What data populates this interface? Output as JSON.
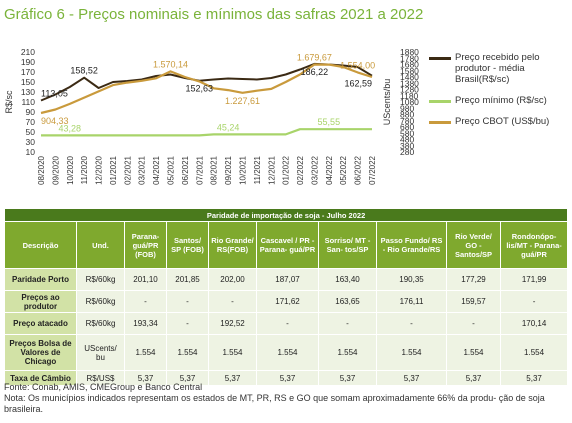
{
  "title": "Gráfico 6 - Preços nominais e mínimos das safras 2021 a 2022",
  "chart_data": {
    "type": "line",
    "categories": [
      "08/2020",
      "09/2020",
      "10/2020",
      "11/2020",
      "12/2020",
      "01/2021",
      "02/2021",
      "03/2021",
      "04/2021",
      "05/2021",
      "06/2021",
      "07/2021",
      "08/2021",
      "09/2021",
      "10/2021",
      "11/2021",
      "12/2021",
      "01/2022",
      "02/2022",
      "03/2022",
      "04/2022",
      "05/2022",
      "06/2022",
      "07/2022"
    ],
    "ylabel_left": "R$/sc",
    "ylabel_right": "UScents/bu",
    "y_left_ticks": [
      "210",
      "190",
      "170",
      "150",
      "130",
      "110",
      "90",
      "70",
      "50",
      "30",
      "10"
    ],
    "y_right_ticks": [
      "1880",
      "1780",
      "1680",
      "1580",
      "1480",
      "1380",
      "1280",
      "1180",
      "1080",
      "980",
      "880",
      "780",
      "680",
      "580",
      "480",
      "380",
      "280"
    ],
    "ylim_left": [
      10,
      210
    ],
    "ylim_right": [
      280,
      1880
    ],
    "series": [
      {
        "name": "Preço recebido pelo produtor - média Brasil(R$/sc)",
        "axis": "left",
        "color": "#3b2a14",
        "values": [
          113.05,
          125,
          140,
          158.52,
          138,
          150,
          152,
          155,
          162,
          165,
          158,
          152.63,
          155,
          157,
          156,
          155,
          158,
          165,
          175,
          186.22,
          185,
          183,
          180,
          162.59
        ]
      },
      {
        "name": "Preço mínimo (R$/sc)",
        "axis": "left",
        "color": "#a8d46a",
        "values": [
          43.28,
          43.28,
          43.28,
          43.28,
          43.28,
          43.28,
          43.28,
          43.28,
          43.28,
          43.28,
          43.28,
          43.28,
          45.24,
          45.24,
          45.24,
          45.24,
          45.24,
          45.24,
          55.55,
          55.55,
          55.55,
          55.55,
          55.55,
          55.55
        ]
      },
      {
        "name": "Preço CBOT (US$/bu)",
        "axis": "right",
        "color": "#c99a3c",
        "values": [
          904.33,
          960,
          1050,
          1150,
          1250,
          1350,
          1390,
          1420,
          1460,
          1570.14,
          1480,
          1410,
          1300,
          1270,
          1227.61,
          1260,
          1290,
          1400,
          1520,
          1679.67,
          1679,
          1640,
          1554,
          1480
        ]
      }
    ],
    "annotations": [
      {
        "text": "113,05",
        "series": 0,
        "index": 0,
        "pos": "above"
      },
      {
        "text": "158,52",
        "series": 0,
        "index": 3,
        "pos": "above"
      },
      {
        "text": "152,63",
        "series": 0,
        "index": 11,
        "pos": "below"
      },
      {
        "text": "186,22",
        "series": 0,
        "index": 19,
        "pos": "below"
      },
      {
        "text": "162,59",
        "series": 0,
        "index": 23,
        "pos": "below"
      },
      {
        "text": "904,33",
        "series": 2,
        "index": 0,
        "pos": "below",
        "color": "#c99a3c"
      },
      {
        "text": "1.570,14",
        "series": 2,
        "index": 9,
        "pos": "above",
        "color": "#c99a3c"
      },
      {
        "text": "1.227,61",
        "series": 2,
        "index": 14,
        "pos": "below",
        "color": "#c99a3c"
      },
      {
        "text": "1.679,67",
        "series": 2,
        "index": 19,
        "pos": "above",
        "color": "#c99a3c"
      },
      {
        "text": "1.554,00",
        "series": 2,
        "index": 22,
        "pos": "above",
        "color": "#c99a3c"
      },
      {
        "text": "43,28",
        "series": 1,
        "index": 2,
        "pos": "above",
        "color": "#a8d46a"
      },
      {
        "text": "45,24",
        "series": 1,
        "index": 13,
        "pos": "above",
        "color": "#a8d46a"
      },
      {
        "text": "55,55",
        "series": 1,
        "index": 20,
        "pos": "above",
        "color": "#a8d46a"
      }
    ],
    "legend_position": "right",
    "grid": false
  },
  "table": {
    "caption": "Paridade de importação de soja - Julho 2022",
    "headers": [
      "Descrição",
      "Und.",
      "Parana- guá/PR (FOB)",
      "Santos/ SP (FOB)",
      "Rio Grande/ RS(FOB)",
      "Cascavel / PR - Parana- guá/PR",
      "Sorriso/ MT - San- tos/SP",
      "Passo Fundo/ RS - Rio Grande/RS",
      "Rio Verde/ GO - Santos/SP",
      "Rondonópo- lis/MT - Parana- guá/PR"
    ],
    "rows": [
      {
        "label": "Paridade Porto",
        "unit": "R$/60kg",
        "values": [
          "201,10",
          "201,85",
          "202,00",
          "187,07",
          "163,40",
          "190,35",
          "177,29",
          "171,99"
        ]
      },
      {
        "label": "Preços ao produtor",
        "unit": "R$/60kg",
        "values": [
          "-",
          "-",
          "-",
          "171,62",
          "163,65",
          "176,11",
          "159,57",
          "-"
        ]
      },
      {
        "label": "Preço atacado",
        "unit": "R$/60kg",
        "values": [
          "193,34",
          "-",
          "192,52",
          "-",
          "-",
          "-",
          "-",
          "170,14"
        ]
      },
      {
        "label": "Preços Bolsa de Valores de Chicago",
        "unit": "UScents/ bu",
        "values": [
          "1.554",
          "1.554",
          "1.554",
          "1.554",
          "1.554",
          "1.554",
          "1.554",
          "1.554"
        ]
      },
      {
        "label": "Taxa de Câmbio",
        "unit": "R$/US$",
        "values": [
          "5,37",
          "5,37",
          "5,37",
          "5,37",
          "5,37",
          "5,37",
          "5,37",
          "5,37"
        ]
      }
    ]
  },
  "footer": {
    "source": "Fonte: Conab, AMIS, CMEGroup e Banco Central",
    "note": "Nota: Os municípios indicados representam os estados de MT, PR, RS e GO que somam aproximadamente 66% da produ- ção de soja brasileira."
  }
}
